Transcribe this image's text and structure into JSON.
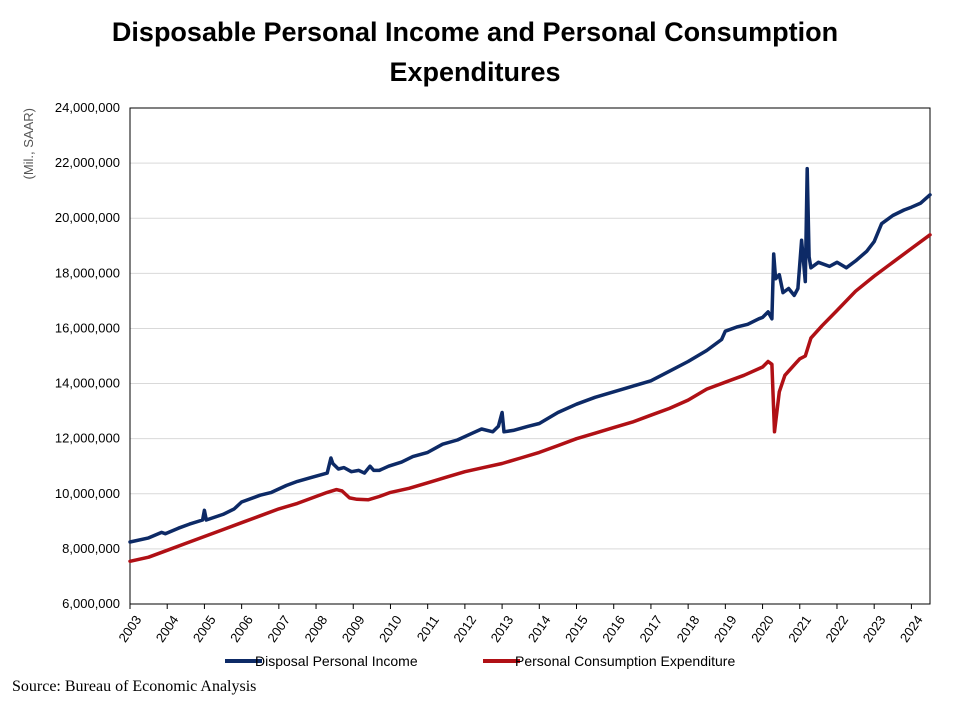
{
  "header": {
    "title": "Disposable Personal Income and Personal Consumption Expenditures"
  },
  "footer": {
    "source": "Source: Bureau of Economic Analysis"
  },
  "colors": {
    "dpi": "#0d2a66",
    "pce": "#b01015",
    "grid": "#d9d9d9"
  },
  "chart_data": {
    "type": "line",
    "title": "Disposable Personal Income and Personal Consumption Expenditures",
    "xlabel": "",
    "ylabel": "(Mil., SAAR)",
    "ylim": [
      6000000,
      24000000
    ],
    "yticks": [
      6000000,
      8000000,
      10000000,
      12000000,
      14000000,
      16000000,
      18000000,
      20000000,
      22000000,
      24000000
    ],
    "ytick_labels": [
      "6,000,000",
      "8,000,000",
      "10,000,000",
      "12,000,000",
      "14,000,000",
      "16,000,000",
      "18,000,000",
      "20,000,000",
      "22,000,000",
      "24,000,000"
    ],
    "xlim": [
      2003.0,
      2024.5
    ],
    "xtick_labels": [
      "2003",
      "2004",
      "2005",
      "2006",
      "2007",
      "2008",
      "2009",
      "2010",
      "2011",
      "2012",
      "2013",
      "2014",
      "2015",
      "2016",
      "2017",
      "2018",
      "2019",
      "2020",
      "2021",
      "2022",
      "2023",
      "2024"
    ],
    "grid": true,
    "legend": "bottom",
    "series": [
      {
        "name": "Disposal Personal Income",
        "color": "#0d2a66",
        "x": [
          2003.0,
          2003.5,
          2003.85,
          2003.95,
          2004.3,
          2004.6,
          2004.95,
          2005.0,
          2005.05,
          2005.5,
          2005.8,
          2006.0,
          2006.5,
          2006.8,
          2007.2,
          2007.5,
          2007.9,
          2008.3,
          2008.4,
          2008.45,
          2008.6,
          2008.75,
          2008.95,
          2009.15,
          2009.3,
          2009.45,
          2009.55,
          2009.7,
          2009.95,
          2010.3,
          2010.6,
          2011.0,
          2011.4,
          2011.8,
          2012.2,
          2012.45,
          2012.75,
          2012.9,
          2013.0,
          2013.05,
          2013.3,
          2013.7,
          2014.0,
          2014.5,
          2015.0,
          2015.5,
          2016.0,
          2016.5,
          2017.0,
          2017.5,
          2018.0,
          2018.5,
          2018.9,
          2019.0,
          2019.3,
          2019.6,
          2019.9,
          2020.0,
          2020.15,
          2020.25,
          2020.3,
          2020.35,
          2020.45,
          2020.55,
          2020.7,
          2020.85,
          2020.95,
          2021.05,
          2021.15,
          2021.2,
          2021.25,
          2021.3,
          2021.5,
          2021.8,
          2022.0,
          2022.25,
          2022.5,
          2022.8,
          2023.0,
          2023.2,
          2023.5,
          2023.8,
          2024.0,
          2024.25,
          2024.5
        ],
        "values": [
          8250000,
          8400000,
          8600000,
          8550000,
          8750000,
          8900000,
          9050000,
          9400000,
          9050000,
          9250000,
          9450000,
          9700000,
          9950000,
          10050000,
          10300000,
          10450000,
          10600000,
          10750000,
          11300000,
          11100000,
          10900000,
          10950000,
          10800000,
          10850000,
          10750000,
          11000000,
          10850000,
          10850000,
          11000000,
          11150000,
          11350000,
          11500000,
          11800000,
          11950000,
          12200000,
          12350000,
          12250000,
          12450000,
          12950000,
          12250000,
          12300000,
          12450000,
          12550000,
          12950000,
          13250000,
          13500000,
          13700000,
          13900000,
          14100000,
          14450000,
          14800000,
          15200000,
          15600000,
          15900000,
          16050000,
          16150000,
          16350000,
          16400000,
          16600000,
          16350000,
          18700000,
          17800000,
          17950000,
          17300000,
          17450000,
          17200000,
          17450000,
          19200000,
          17700000,
          21800000,
          18600000,
          18200000,
          18400000,
          18250000,
          18400000,
          18200000,
          18450000,
          18800000,
          19150000,
          19800000,
          20100000,
          20300000,
          20400000,
          20550000,
          20850000
        ]
      },
      {
        "name": "Personal Consumption Expenditure",
        "color": "#b01015",
        "x": [
          2003.0,
          2003.5,
          2004.0,
          2004.5,
          2005.0,
          2005.5,
          2006.0,
          2006.5,
          2007.0,
          2007.5,
          2008.0,
          2008.3,
          2008.55,
          2008.7,
          2008.9,
          2009.1,
          2009.4,
          2009.7,
          2010.0,
          2010.5,
          2011.0,
          2011.5,
          2012.0,
          2012.5,
          2013.0,
          2013.5,
          2014.0,
          2014.5,
          2015.0,
          2015.5,
          2016.0,
          2016.5,
          2017.0,
          2017.5,
          2018.0,
          2018.5,
          2019.0,
          2019.5,
          2020.0,
          2020.15,
          2020.25,
          2020.32,
          2020.45,
          2020.6,
          2020.9,
          2021.0,
          2021.15,
          2021.3,
          2021.6,
          2022.0,
          2022.5,
          2023.0,
          2023.5,
          2024.0,
          2024.5
        ],
        "values": [
          7550000,
          7700000,
          7950000,
          8200000,
          8450000,
          8700000,
          8950000,
          9200000,
          9450000,
          9650000,
          9900000,
          10050000,
          10150000,
          10100000,
          9850000,
          9800000,
          9780000,
          9900000,
          10050000,
          10200000,
          10400000,
          10600000,
          10800000,
          10950000,
          11100000,
          11300000,
          11500000,
          11750000,
          12000000,
          12200000,
          12400000,
          12600000,
          12850000,
          13100000,
          13400000,
          13800000,
          14050000,
          14300000,
          14600000,
          14800000,
          14700000,
          12250000,
          13700000,
          14300000,
          14750000,
          14900000,
          15000000,
          15650000,
          16100000,
          16650000,
          17350000,
          17900000,
          18400000,
          18900000,
          19400000
        ]
      }
    ]
  }
}
